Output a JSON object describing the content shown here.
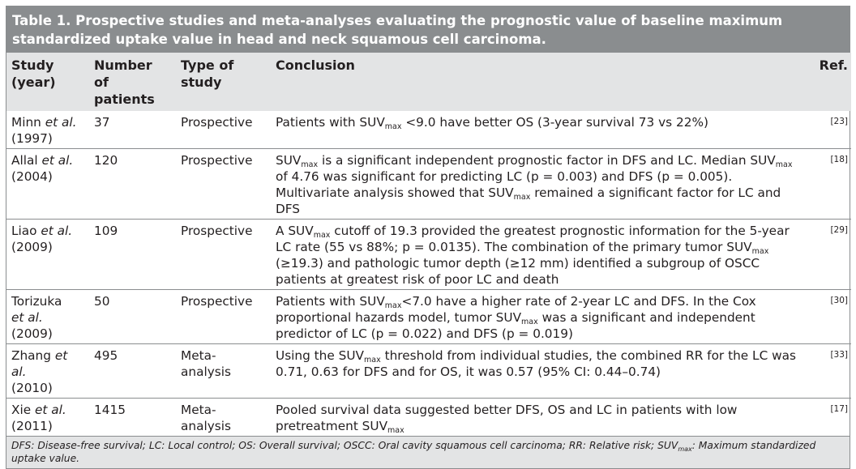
{
  "table": {
    "title_line1": "Table 1. Prospective studies and meta-analyses evaluating the prognostic value of baseline maximum",
    "title_line2": "standardized uptake value in head and neck squamous cell carcinoma.",
    "headers": {
      "study_line1": "Study",
      "study_line2": "(year)",
      "patients_line1": "Number of",
      "patients_line2": "patients",
      "type_line1": "Type of",
      "type_line2": "study",
      "conclusion": "Conclusion",
      "ref": "Ref."
    },
    "rows": [
      {
        "author": "Minn",
        "etal": "et al.",
        "year": "(1997)",
        "patients": "37",
        "type": "Prospective",
        "c": [
          "Patients with SUV",
          "max",
          " <9.0 have better OS (3-year survival 73 vs 22%)"
        ],
        "ref": "[23]"
      },
      {
        "author": "Allal",
        "etal": "et al.",
        "year": "(2004)",
        "patients": "120",
        "type": "Prospective",
        "c": [
          "SUV",
          "max",
          " is a significant independent prognostic factor in DFS and LC. Median SUV",
          "max",
          " of 4.76 was significant for predicting LC (p = 0.003) and DFS (p = 0.005). Multivariate analysis showed that SUV",
          "max",
          " remained a significant factor for LC and DFS"
        ],
        "ref": "[18]"
      },
      {
        "author": "Liao",
        "etal": "et al.",
        "year": "(2009)",
        "patients": "109",
        "type": "Prospective",
        "c": [
          "A SUV",
          "max",
          " cutoff of 19.3 provided the greatest prognostic information for the 5-year LC rate (55 vs 88%; p = 0.0135).  The combination of the primary tumor SUV",
          "max",
          " (≥19.3) and pathologic tumor depth (≥12 mm) identified a subgroup of OSCC patients at greatest risk of poor LC and death"
        ],
        "ref": "[29]"
      },
      {
        "author": "Torizuka",
        "etal": "et al.",
        "year": "(2009)",
        "patients": "50",
        "type": "Prospective",
        "c": [
          "Patients with SUV",
          "max",
          "<7.0 have a higher rate of 2-year LC and DFS. In the Cox proportional hazards model, tumor SUV",
          "max",
          " was a significant and independent predictor of LC (p = 0.022) and DFS (p = 0.019)"
        ],
        "ref": "[30]"
      },
      {
        "author": "Zhang",
        "etal": "et al.",
        "year": "(2010)",
        "patients": "495",
        "type": "Meta-analysis",
        "c": [
          "Using the SUV",
          "max",
          " threshold from individual studies, the combined RR for the LC was 0.71, 0.63 for DFS and for OS, it was 0.57 (95% CI: 0.44–0.74)"
        ],
        "ref": "[33]"
      },
      {
        "author": "Xie",
        "etal": "et al.",
        "year": "(2011)",
        "patients": "1415",
        "type": "Meta-analysis",
        "c": [
          "Pooled survival data suggested better DFS, OS and LC in patients with low pretreatment SUV",
          "max",
          ""
        ],
        "ref": "[17]"
      }
    ],
    "footnote": [
      "DFS: Disease-free survival; LC: Local control; OS: Overall survival; OSCC: Oral cavity squamous cell carcinoma; RR: Relative risk; SUV",
      "max",
      ": Maximum standardized uptake value."
    ]
  },
  "colors": {
    "title_bg": "#8a8d8f",
    "header_bg": "#e3e4e5",
    "rule": "#8a8d8f"
  }
}
